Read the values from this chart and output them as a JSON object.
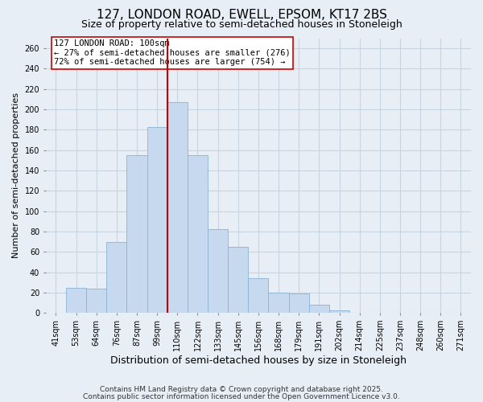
{
  "title": "127, LONDON ROAD, EWELL, EPSOM, KT17 2BS",
  "subtitle": "Size of property relative to semi-detached houses in Stoneleigh",
  "xlabel": "Distribution of semi-detached houses by size in Stoneleigh",
  "ylabel": "Number of semi-detached properties",
  "bin_labels": [
    "41sqm",
    "53sqm",
    "64sqm",
    "76sqm",
    "87sqm",
    "99sqm",
    "110sqm",
    "122sqm",
    "133sqm",
    "145sqm",
    "156sqm",
    "168sqm",
    "179sqm",
    "191sqm",
    "202sqm",
    "214sqm",
    "225sqm",
    "237sqm",
    "248sqm",
    "260sqm",
    "271sqm"
  ],
  "bar_values": [
    0,
    25,
    24,
    70,
    155,
    183,
    207,
    155,
    82,
    65,
    34,
    20,
    19,
    8,
    3,
    0,
    0,
    0,
    0,
    0,
    0
  ],
  "bar_color": "#c6d9ee",
  "bar_edge_color": "#8ab4d4",
  "background_color": "#e8eef6",
  "grid_color": "#c8d4e0",
  "vline_x_index": 5,
  "vline_color": "#cc0000",
  "ylim": [
    0,
    270
  ],
  "yticks": [
    0,
    20,
    40,
    60,
    80,
    100,
    120,
    140,
    160,
    180,
    200,
    220,
    240,
    260
  ],
  "annotation_title": "127 LONDON ROAD: 100sqm",
  "annotation_line1": "← 27% of semi-detached houses are smaller (276)",
  "annotation_line2": "72% of semi-detached houses are larger (754) →",
  "annotation_box_color": "#ffffff",
  "annotation_box_edge": "#cc0000",
  "footer_line1": "Contains HM Land Registry data © Crown copyright and database right 2025.",
  "footer_line2": "Contains public sector information licensed under the Open Government Licence v3.0.",
  "title_fontsize": 11,
  "subtitle_fontsize": 9,
  "xlabel_fontsize": 9,
  "ylabel_fontsize": 8,
  "tick_fontsize": 7,
  "annotation_fontsize": 7.5,
  "footer_fontsize": 6.5
}
